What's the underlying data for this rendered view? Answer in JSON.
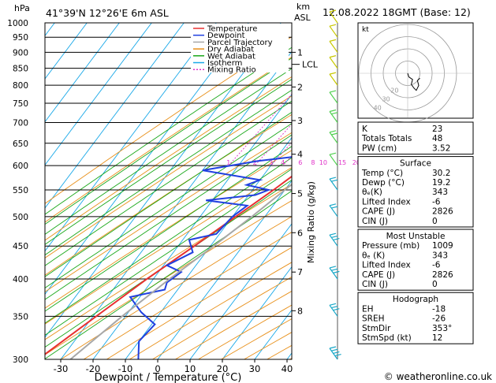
{
  "header": {
    "hpa_label": "hPa",
    "location": "41°39'N  12°26'E  6m  ASL",
    "km_label": "km",
    "asl_label": "ASL",
    "datetime": "12.08.2022  18GMT  (Base: 12)"
  },
  "axes": {
    "xlabel": "Dewpoint / Temperature (°C)",
    "y2label": "Mixing Ratio (g/kg)",
    "lcl_label": "LCL",
    "credit": "© weatheronline.co.uk"
  },
  "colors": {
    "temperature": "#e83030",
    "dewpoint": "#2040e0",
    "parcel": "#a8a8a8",
    "dry_adiabat": "#e8901a",
    "wet_adiabat": "#1aa81a",
    "isotherm": "#18a8e8",
    "mixing_ratio": "#e030c8"
  },
  "chart_data": {
    "type": "line",
    "title": "41°39'N 12°26'E 6m ASL",
    "xlabel": "Dewpoint / Temperature (°C)",
    "ylabel": "hPa",
    "xlim": [
      -35,
      40
    ],
    "ylim": [
      1000,
      300
    ],
    "x_ticks": [
      -30,
      -20,
      -10,
      0,
      10,
      20,
      30,
      40
    ],
    "pressure_ticks": [
      300,
      350,
      400,
      450,
      500,
      550,
      600,
      650,
      700,
      750,
      800,
      850,
      900,
      950,
      1000
    ],
    "km_ticks": [
      {
        "km": "8",
        "p": 357
      },
      {
        "km": "7",
        "p": 410
      },
      {
        "km": "6",
        "p": 472
      },
      {
        "km": "5",
        "p": 543
      },
      {
        "km": "4",
        "p": 625
      },
      {
        "km": "3",
        "p": 705
      },
      {
        "km": "2",
        "p": 795
      },
      {
        "km": "1",
        "p": 900
      }
    ],
    "lcl_pressure": 862,
    "mixing_ratio_labels": [
      "1",
      "2",
      "3",
      "4",
      "6",
      "8",
      "10",
      "15",
      "20",
      "25"
    ],
    "mixing_ratio_values": [
      1,
      2,
      3,
      4,
      6,
      8,
      10,
      15,
      20,
      25
    ],
    "legend": [
      "Temperature",
      "Dewpoint",
      "Parcel Trajectory",
      "Dry Adiabat",
      "Wet Adiabat",
      "Isotherm",
      "Mixing Ratio"
    ],
    "series": [
      {
        "name": "Temperature",
        "points": [
          [
            30.2,
            1000
          ],
          [
            26,
            950
          ],
          [
            22.5,
            900
          ],
          [
            19.5,
            850
          ],
          [
            16,
            800
          ],
          [
            12.5,
            750
          ],
          [
            9,
            700
          ],
          [
            5,
            650
          ],
          [
            1,
            600
          ],
          [
            -3.5,
            550
          ],
          [
            -9,
            500
          ],
          [
            -15,
            450
          ],
          [
            -22,
            400
          ],
          [
            -29,
            350
          ],
          [
            -37,
            300
          ]
        ]
      },
      {
        "name": "Dewpoint",
        "points": [
          [
            19.2,
            1000
          ],
          [
            21,
            950
          ],
          [
            20.5,
            900
          ],
          [
            18,
            880
          ],
          [
            16,
            850
          ],
          [
            16.5,
            820
          ],
          [
            15,
            800
          ],
          [
            13,
            780
          ],
          [
            12.5,
            760
          ],
          [
            7,
            750
          ],
          [
            9,
            740
          ],
          [
            6,
            730
          ],
          [
            3,
            700
          ],
          [
            -1,
            690
          ],
          [
            0,
            660
          ],
          [
            -5,
            630
          ],
          [
            -4,
            620
          ],
          [
            -15,
            610
          ],
          [
            -30,
            590
          ],
          [
            -10,
            570
          ],
          [
            -13,
            560
          ],
          [
            -5,
            550
          ],
          [
            -8,
            540
          ],
          [
            -22,
            530
          ],
          [
            -8,
            520
          ],
          [
            -10,
            500
          ],
          [
            -11,
            470
          ],
          [
            -18,
            460
          ],
          [
            -14,
            440
          ],
          [
            -19,
            420
          ],
          [
            -13,
            410
          ],
          [
            -15,
            395
          ],
          [
            -14,
            385
          ],
          [
            -23,
            375
          ],
          [
            -16,
            355
          ],
          [
            -9,
            340
          ],
          [
            -10,
            320
          ],
          [
            -6,
            300
          ]
        ]
      },
      {
        "name": "Parcel Trajectory",
        "points": [
          [
            30.2,
            1000
          ],
          [
            26,
            950
          ],
          [
            23,
            900
          ],
          [
            20.5,
            862
          ],
          [
            18,
            830
          ],
          [
            16,
            800
          ],
          [
            13,
            750
          ],
          [
            10,
            700
          ],
          [
            7,
            650
          ],
          [
            4,
            600
          ],
          [
            0,
            550
          ],
          [
            -4,
            500
          ],
          [
            -9,
            450
          ],
          [
            -15,
            400
          ],
          [
            -21,
            350
          ],
          [
            -27,
            300
          ]
        ]
      }
    ],
    "wind_barbs": [
      {
        "p": 1000,
        "spd": 5
      },
      {
        "p": 950,
        "spd": 5
      },
      {
        "p": 900,
        "spd": 10
      },
      {
        "p": 850,
        "spd": 10
      },
      {
        "p": 800,
        "spd": 10
      },
      {
        "p": 750,
        "spd": 10
      },
      {
        "p": 700,
        "spd": 15
      },
      {
        "p": 650,
        "spd": 15
      },
      {
        "p": 600,
        "spd": 10
      },
      {
        "p": 550,
        "spd": 15
      },
      {
        "p": 500,
        "spd": 20
      },
      {
        "p": 450,
        "spd": 25
      },
      {
        "p": 400,
        "spd": 25
      },
      {
        "p": 350,
        "spd": 30
      },
      {
        "p": 300,
        "spd": 35
      }
    ],
    "hodograph": {
      "label": "kt",
      "ring_labels": [
        "40",
        "30",
        "20"
      ],
      "ring_values": [
        10,
        20,
        30,
        40
      ],
      "trace": [
        [
          0,
          0
        ],
        [
          1,
          -3
        ],
        [
          4,
          -5
        ],
        [
          3,
          -9
        ],
        [
          5,
          -12
        ],
        [
          7,
          -14
        ],
        [
          9,
          -10
        ],
        [
          8,
          -6
        ],
        [
          10,
          -4
        ]
      ]
    }
  },
  "indices": {
    "top": [
      {
        "label": "K",
        "value": "23"
      },
      {
        "label": "Totals Totals",
        "value": "48"
      },
      {
        "label": "PW (cm)",
        "value": "3.52"
      }
    ],
    "surface": {
      "title": "Surface",
      "rows": [
        {
          "label": "Temp (°C)",
          "value": "30.2"
        },
        {
          "label": "Dewp (°C)",
          "value": "19.2"
        },
        {
          "label": "θₑ(K)",
          "value": "343"
        },
        {
          "label": "Lifted Index",
          "value": "-6"
        },
        {
          "label": "CAPE (J)",
          "value": "2826"
        },
        {
          "label": "CIN (J)",
          "value": "0"
        }
      ]
    },
    "unstable": {
      "title": "Most Unstable",
      "rows": [
        {
          "label": "Pressure (mb)",
          "value": "1009"
        },
        {
          "label": "θₑ (K)",
          "value": "343"
        },
        {
          "label": "Lifted Index",
          "value": "-6"
        },
        {
          "label": "CAPE (J)",
          "value": "2826"
        },
        {
          "label": "CIN (J)",
          "value": "0"
        }
      ]
    },
    "hodograph": {
      "title": "Hodograph",
      "rows": [
        {
          "label": "EH",
          "value": "-18"
        },
        {
          "label": "SREH",
          "value": "-26"
        },
        {
          "label": "StmDir",
          "value": "353°"
        },
        {
          "label": "StmSpd (kt)",
          "value": "12"
        }
      ]
    }
  }
}
